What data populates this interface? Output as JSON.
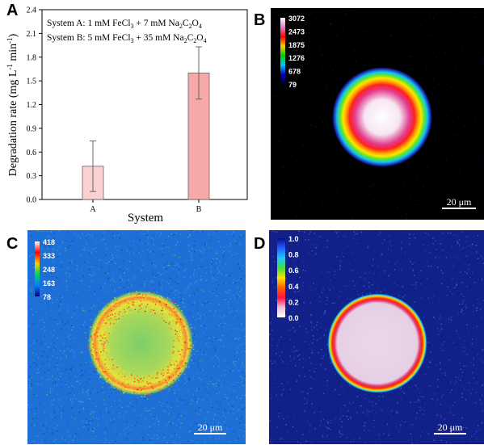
{
  "chart_data": [
    {
      "panel": "A",
      "type": "bar",
      "categories": [
        "A",
        "B"
      ],
      "values": [
        0.42,
        1.6
      ],
      "errors": [
        0.32,
        0.33
      ],
      "xlabel": "System",
      "ylabel": "Degradation rate (mg L",
      "ylabel_sup1": "-1",
      "ylabel_mid": " min",
      "ylabel_sup2": "-1",
      "ylabel_end": ")",
      "ylim": [
        0,
        2.4
      ],
      "yticks": [
        "0.0",
        "0.3",
        "0.6",
        "0.9",
        "1.2",
        "1.5",
        "1.8",
        "2.1",
        "2.4"
      ],
      "bar_colors": [
        "#fbd0d0",
        "#f7a8a8"
      ],
      "annotations": {
        "systemA": {
          "prefix": "System A: 1 mM FeCl",
          "s1": "3",
          "mid": " + 7 mM Na",
          "s2": "2",
          "c": "C",
          "s3": "2",
          "o": "O",
          "s4": "4"
        },
        "systemB": {
          "prefix": "System B: 5 mM FeCl",
          "s1": "3",
          "mid": " + 35 mM Na",
          "s2": "2",
          "c": "C",
          "s3": "2",
          "o": "O",
          "s4": "4"
        }
      }
    },
    {
      "panel": "B",
      "type": "heatmap",
      "colorbar_ticks": [
        "3072",
        "2473",
        "1875",
        "1276",
        "678",
        "79"
      ],
      "scale_bar": "20 μm",
      "pattern": "filled disk with ring",
      "background": "#000000"
    },
    {
      "panel": "C",
      "type": "heatmap",
      "colorbar_ticks": [
        "418",
        "333",
        "248",
        "163",
        "78"
      ],
      "scale_bar": "20 μm",
      "pattern": "ring",
      "background": "#1e6fd6"
    },
    {
      "panel": "D",
      "type": "heatmap",
      "colorbar_ticks": [
        "1.0",
        "0.8",
        "0.6",
        "0.4",
        "0.2",
        "0.0"
      ],
      "scale_bar": "20 μm",
      "pattern": "filled disk",
      "background": "#12208a"
    }
  ],
  "labels": {
    "A": "A",
    "B": "B",
    "C": "C",
    "D": "D"
  }
}
